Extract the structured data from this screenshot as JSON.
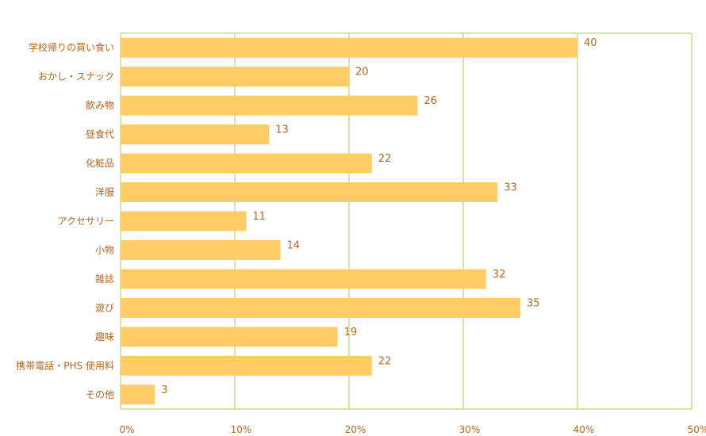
{
  "chart_data": {
    "type": "bar",
    "orientation": "horizontal",
    "categories": [
      "学校帰りの買い食い",
      "おかし・スナック",
      "飲み物",
      "昼食代",
      "化粧品",
      "洋服",
      "アクセサリー",
      "小物",
      "雑誌",
      "遊び",
      "趣味",
      "携帯電話・PHS 使用料",
      "その他"
    ],
    "values": [
      40,
      20,
      26,
      13,
      22,
      33,
      11,
      14,
      32,
      35,
      19,
      22,
      3
    ],
    "xlim": [
      0,
      50
    ],
    "x_ticks": [
      "0%",
      "10%",
      "20%",
      "30%",
      "40%",
      "50%"
    ],
    "title": "",
    "xlabel": "",
    "ylabel": "",
    "grid": true,
    "colors": {
      "bar": "#ffcc66",
      "grid": "#b5d96a",
      "text": "#b5651d"
    }
  }
}
